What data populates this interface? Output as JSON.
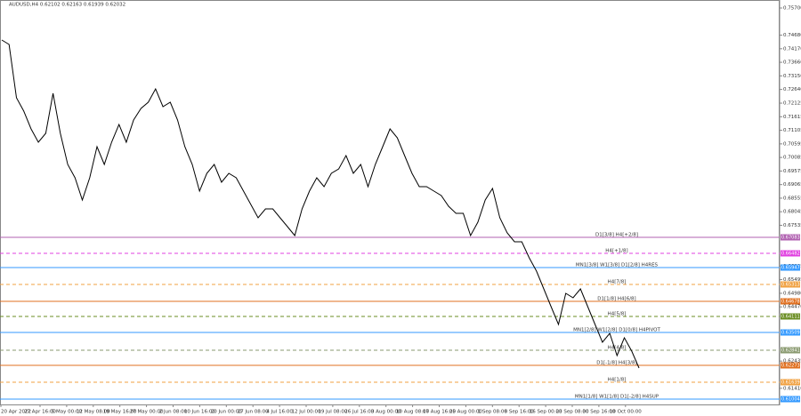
{
  "header": "AUDUSD,H4  0.62102 0.62163 0.61939 0.62032",
  "chart_data": {
    "type": "line",
    "color": "#000000",
    "values": [
      0.74498,
      0.74331,
      0.72327,
      0.71826,
      0.71158,
      0.70657,
      0.70991,
      0.72494,
      0.70991,
      0.69822,
      0.69321,
      0.68486,
      0.69321,
      0.7049,
      0.69822,
      0.70657,
      0.71325,
      0.70657,
      0.71492,
      0.71926,
      0.7216,
      0.72661,
      0.71993,
      0.7216,
      0.71492,
      0.7049,
      0.69822,
      0.6882,
      0.69488,
      0.69822,
      0.69154,
      0.69488,
      0.69321,
      0.6882,
      0.68319,
      0.67818,
      0.68152,
      0.68152,
      0.67818,
      0.67484,
      0.6715,
      0.68152,
      0.6882,
      0.69321,
      0.68987,
      0.69488,
      0.69655,
      0.70156,
      0.69488,
      0.69822,
      0.68987,
      0.69822,
      0.7049,
      0.71158,
      0.70824,
      0.70156,
      0.69488,
      0.68987,
      0.68987,
      0.6882,
      0.68653,
      0.68252,
      0.67985,
      0.67985,
      0.6715,
      0.67651,
      0.68486,
      0.6892,
      0.67818,
      0.6725,
      0.66916,
      0.66916,
      0.66315,
      0.65814,
      0.65146,
      0.64478,
      0.6381,
      0.64979,
      0.64812,
      0.65146,
      0.64478,
      0.6381,
      0.63142,
      0.63476,
      0.62641,
      0.63309,
      0.62808,
      0.62173
    ],
    "ylim": [
      0.60804,
      0.76001
    ],
    "yticks": [
      {
        "value": 0.757,
        "label": "0.75700"
      },
      {
        "value": 0.7468,
        "label": "0.74680"
      },
      {
        "value": 0.7417,
        "label": "0.74170"
      },
      {
        "value": 0.7366,
        "label": "0.73660"
      },
      {
        "value": 0.7315,
        "label": "0.73150"
      },
      {
        "value": 0.7264,
        "label": "0.72640"
      },
      0.72125,
      0.71615,
      0.71105,
      0.70595,
      0.70085,
      0.69575,
      0.69065,
      0.68555,
      0.68045,
      0.67535,
      0.66005,
      0.65495,
      {
        "value": 0.6498,
        "label": "0.64980"
      },
      {
        "value": 0.6447,
        "label": "0.64470"
      },
      0.62435,
      {
        "value": 0.6141,
        "label": "0.61410"
      }
    ],
    "x_labels": [
      "20 Apr 2022",
      "27 Apr 16:00",
      "5 May 00:00",
      "12 May 08:00",
      "19 May 16:00",
      "27 May 00:00",
      "2 Jun 08:00",
      "10 Jun 16:00",
      "20 Jun 00:00",
      "27 Jun 08:00",
      "4 Jul 16:00",
      "12 Jul 00:00",
      "19 Jul 08:00",
      "26 Jul 16:00",
      "3 Aug 00:00",
      "10 Aug 08:00",
      "17 Aug 16:00",
      "25 Aug 00:00",
      "1 Sep 08:00",
      "8 Sep 16:00",
      "16 Sep 00:00",
      "23 Sep 08:00",
      "30 Sep 16:00",
      "10 Oct 00:00"
    ],
    "levels": [
      {
        "label": "D1[3/8] H4[+2/8]",
        "price": 0.67083,
        "color": "#b060b0",
        "dash": false
      },
      {
        "label": "H4[+1/8]",
        "price": 0.66482,
        "color": "#e040e0",
        "dash": true
      },
      {
        "label": "MN1[3/8] W1[3/8] D1[2/8] H4RES",
        "price": 0.65947,
        "color": "#3399ff",
        "dash": false
      },
      {
        "label": "H4[7/8]",
        "price": 0.65313,
        "color": "#f0a040",
        "dash": true
      },
      {
        "label": "D1[1/8] H4[6/8]",
        "price": 0.64678,
        "color": "#e07020",
        "dash": false
      },
      {
        "label": "H4[5/8]",
        "price": 0.64111,
        "color": "#6b8e23",
        "dash": true
      },
      {
        "label": "MN1[2/8] W1[2/8] D1[0/8] H4PIVOT",
        "price": 0.63509,
        "color": "#3399ff",
        "dash": false
      },
      {
        "label": "H4[4/8]",
        "price": 0.62841,
        "color": "#8a9a70",
        "dash": true
      },
      {
        "label": "D1[-1/8] H4[3/8]",
        "price": 0.62273,
        "color": "#e07020",
        "dash": false
      },
      {
        "label": "H4[1/8]",
        "price": 0.61639,
        "color": "#f0a040",
        "dash": true
      },
      {
        "label": "MN1[1/8] W1[1/8] D1[-2/8] H4SUP",
        "price": 0.61004,
        "color": "#3399ff",
        "dash": false
      }
    ]
  }
}
